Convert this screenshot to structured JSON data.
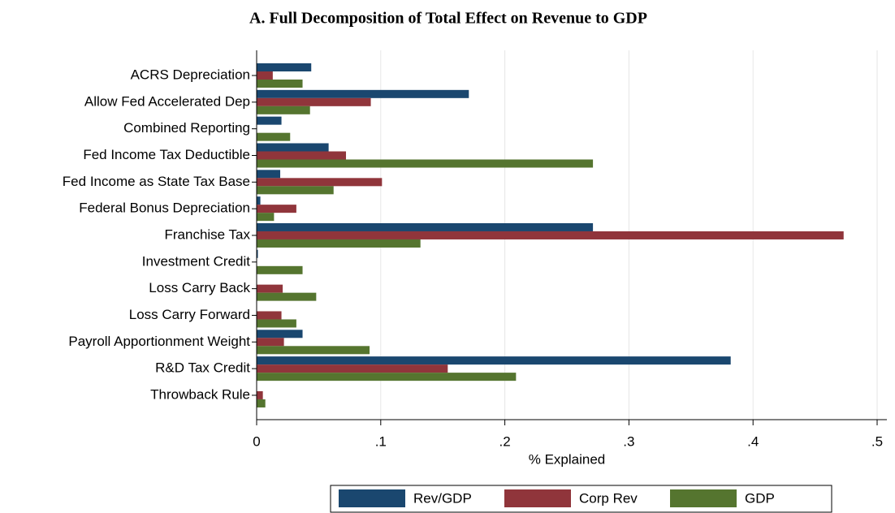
{
  "chart_data": {
    "type": "hbar",
    "title": "A. Full Decomposition of Total Effect on Revenue to GDP",
    "xlabel": "% Explained",
    "categories": [
      "ACRS Depreciation",
      "Allow Fed Accelerated Dep",
      "Combined Reporting",
      "Fed Income Tax Deductible",
      "Fed Income as State Tax Base",
      "Federal Bonus Depreciation",
      "Franchise Tax",
      "Investment Credit",
      "Loss Carry Back",
      "Loss Carry Forward",
      "Payroll Apportionment Weight",
      "R&D Tax Credit",
      "Throwback Rule"
    ],
    "series": [
      {
        "name": "Rev/GDP",
        "color": "#1a476f",
        "values": [
          0.044,
          0.171,
          0.02,
          0.058,
          0.019,
          0.003,
          0.271,
          0.001,
          0,
          0,
          0.037,
          0.382,
          0
        ]
      },
      {
        "name": "Corp Rev",
        "color": "#90353b",
        "values": [
          0.013,
          0.092,
          0,
          0.072,
          0.101,
          0.032,
          0.473,
          0,
          0.021,
          0.02,
          0.022,
          0.154,
          0.005
        ]
      },
      {
        "name": "GDP",
        "color": "#55752f",
        "values": [
          0.037,
          0.043,
          0.027,
          0.271,
          0.062,
          0.014,
          0.132,
          0.037,
          0.048,
          0.032,
          0.091,
          0.209,
          0.007
        ]
      }
    ],
    "xlim": [
      0,
      0.5
    ],
    "xticks": [
      0,
      {
        "value": 0.1,
        "label": ".1"
      },
      {
        "value": 0.2,
        "label": ".2"
      },
      {
        "value": 0.3,
        "label": ".3"
      },
      {
        "value": 0.4,
        "label": ".4"
      },
      {
        "value": 0.5,
        "label": ".5"
      }
    ],
    "grid": true,
    "legend": "bottom"
  }
}
